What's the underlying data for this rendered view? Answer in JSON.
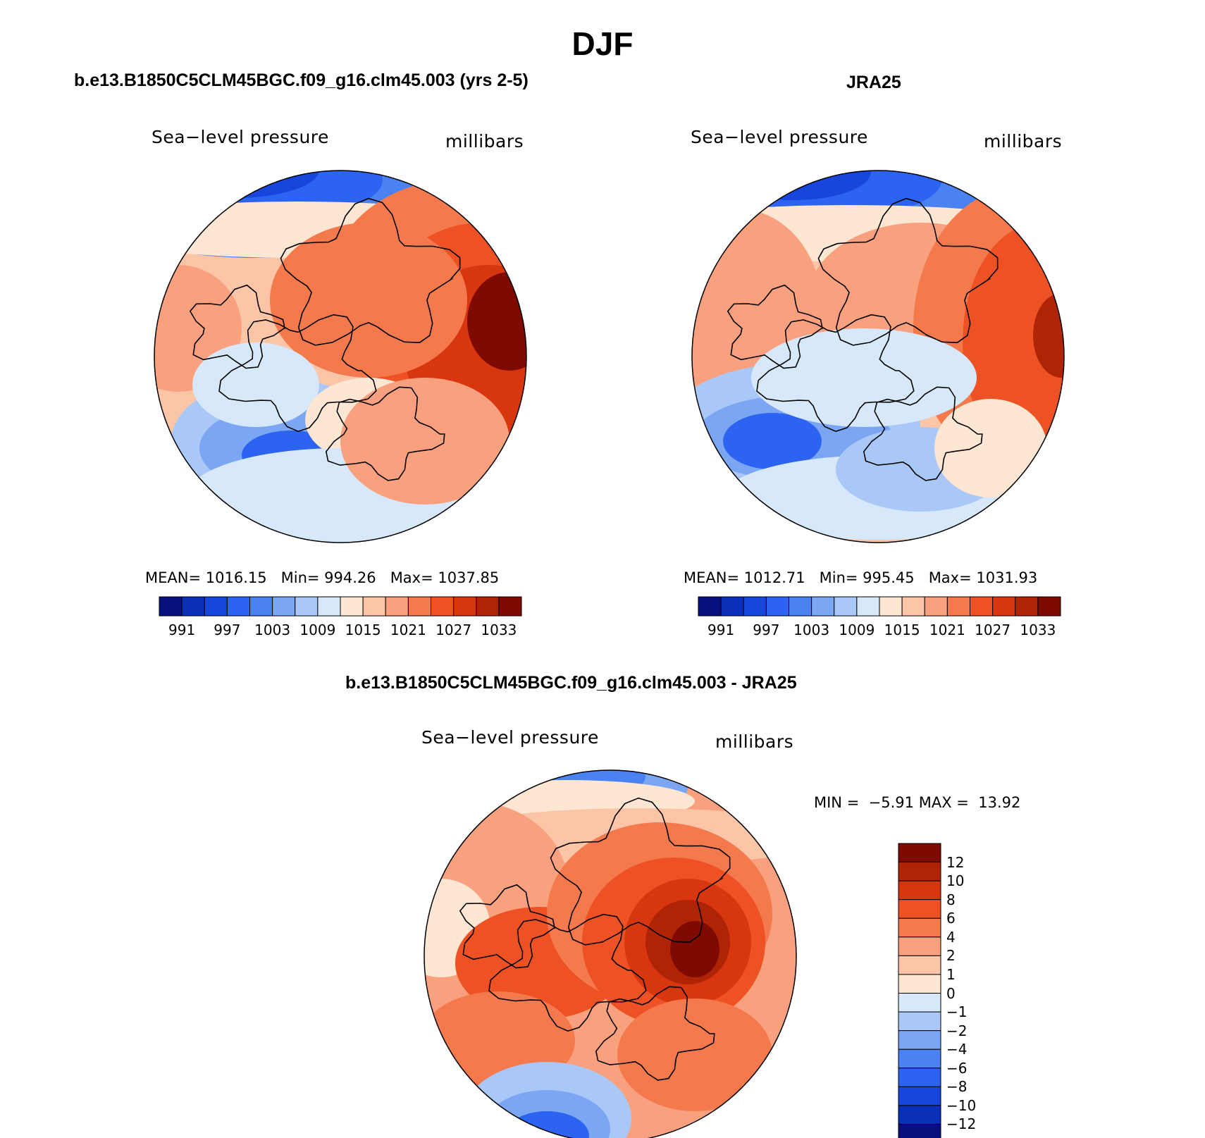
{
  "title": "DJF",
  "colors": {
    "abs_palette": [
      "#08107e",
      "#0a2fb8",
      "#1846dc",
      "#2c63f0",
      "#4a82f4",
      "#7aa6f4",
      "#a9c8f8",
      "#d6e8fa",
      "#fde6d2",
      "#fcc5a8",
      "#f9a17e",
      "#f47a4e",
      "#ee5224",
      "#d8360f",
      "#b02406",
      "#7e0a02"
    ],
    "diff_palette": [
      "#08107e",
      "#0a2fb8",
      "#1846dc",
      "#2c63f0",
      "#4a82f4",
      "#7aa6f4",
      "#a9c8f8",
      "#d6e8fa",
      "#fde6d2",
      "#fcc5a8",
      "#f9a17e",
      "#f47a4e",
      "#ee5224",
      "#d8360f",
      "#b02406",
      "#7e0a02"
    ],
    "coastline": "#000000"
  },
  "chart_data": [
    {
      "type": "heatmap",
      "title": "b.e13.B1850C5CLM45BGC.f09_g16.clm45.003 (yrs 2-5)",
      "variable": "Sea−level pressure",
      "units": "millibars",
      "projection": "polar stereographic, North Pole",
      "stats": {
        "mean_label": "MEAN=",
        "mean": "1016.15",
        "min_label": "Min=",
        "min": "994.26",
        "max_label": "Max=",
        "max": "1037.85"
      },
      "colorbar_ticks": [
        "991",
        "997",
        "1003",
        "1009",
        "1015",
        "1021",
        "1027",
        "1033"
      ],
      "levels": [
        988,
        991,
        994,
        997,
        1000,
        1003,
        1006,
        1009,
        1012,
        1015,
        1018,
        1021,
        1024,
        1027,
        1030,
        1033,
        1036
      ]
    },
    {
      "type": "heatmap",
      "title": "JRA25",
      "variable": "Sea−level pressure",
      "units": "millibars",
      "projection": "polar stereographic, North Pole",
      "stats": {
        "mean_label": "MEAN=",
        "mean": "1012.71",
        "min_label": "Min=",
        "min": "995.45",
        "max_label": "Max=",
        "max": "1031.93"
      },
      "colorbar_ticks": [
        "991",
        "997",
        "1003",
        "1009",
        "1015",
        "1021",
        "1027",
        "1033"
      ],
      "levels": [
        988,
        991,
        994,
        997,
        1000,
        1003,
        1006,
        1009,
        1012,
        1015,
        1018,
        1021,
        1024,
        1027,
        1030,
        1033,
        1036
      ]
    },
    {
      "type": "heatmap",
      "title": "b.e13.B1850C5CLM45BGC.f09_g16.clm45.003 - JRA25",
      "variable": "Sea−level pressure",
      "units": "millibars",
      "projection": "polar stereographic, North Pole",
      "stats": {
        "min_label": "MIN =",
        "min": "−5.91",
        "max_label": "MAX =",
        "max": "13.92"
      },
      "colorbar_ticks": [
        "12",
        "10",
        "8",
        "6",
        "4",
        "2",
        "1",
        "0",
        "−1",
        "−2",
        "−4",
        "−6",
        "−8",
        "−10",
        "−12"
      ]
    }
  ]
}
